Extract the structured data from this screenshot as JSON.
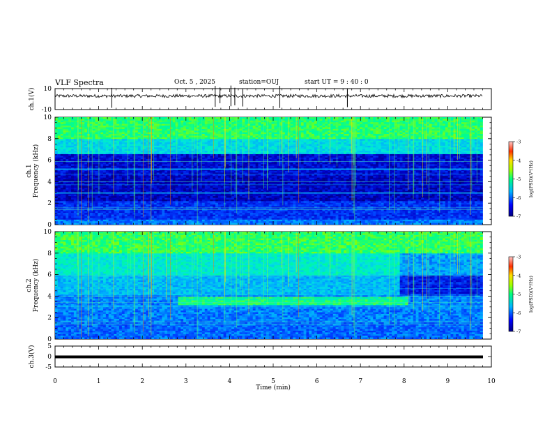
{
  "header": {
    "title": "VLF Spectra",
    "date": "Oct. 5 , 2025",
    "station": "station=OUJ",
    "start": "start  UT  =   9 : 40 : 0"
  },
  "chart_data": [
    {
      "type": "line",
      "panel": "ch1-waveform",
      "ylabel": "ch.1(V)",
      "ylim": [
        -10,
        10
      ],
      "yticks": [
        "10",
        "-10"
      ],
      "xlim": [
        0,
        10
      ],
      "baseline_level": 3,
      "spikes_min": [
        1.3,
        3.67,
        3.78,
        4.03,
        4.12,
        4.3,
        5.15,
        6.7
      ],
      "color": "#000000"
    },
    {
      "type": "heatmap",
      "panel": "ch1-spectrogram",
      "ylabel": "Frequency (kHz)",
      "channel_label": "ch.1",
      "ylim": [
        0,
        10
      ],
      "yticks": [
        "0",
        "2",
        "4",
        "6",
        "8",
        "10"
      ],
      "xlim": [
        0,
        10
      ],
      "colorbar": {
        "label": "log(PSD)(V²/Hz)",
        "range": [
          -7,
          -3
        ],
        "ticks": [
          "-3",
          "-4",
          "-5",
          "-6",
          "-7"
        ]
      }
    },
    {
      "type": "heatmap",
      "panel": "ch2-spectrogram",
      "ylabel": "Frequency (kHz)",
      "channel_label": "ch.2",
      "ylim": [
        0,
        10
      ],
      "yticks": [
        "0",
        "2",
        "4",
        "6",
        "8",
        "10"
      ],
      "xlim": [
        0,
        10
      ],
      "features": [
        {
          "type": "band",
          "x_start_min": 2.8,
          "x_end_min": 8.1,
          "freq_khz": [
            3.1,
            3.9
          ]
        }
      ],
      "colorbar": {
        "label": "log(PSD)(V²/Hz)",
        "range": [
          -7,
          -3
        ],
        "ticks": [
          "-3",
          "-4",
          "-5",
          "-6",
          "-7"
        ]
      }
    },
    {
      "type": "line",
      "panel": "ch3-waveform",
      "ylabel": "ch.3(V)",
      "ylim": [
        -5,
        5
      ],
      "yticks": [
        "5",
        "0",
        "-5"
      ],
      "xlim": [
        0,
        10
      ],
      "baseline_level": 0,
      "color": "#000000"
    }
  ],
  "xaxis": {
    "label": "Time  (min)",
    "ticks": [
      "0",
      "1",
      "2",
      "3",
      "4",
      "5",
      "6",
      "7",
      "8",
      "9",
      "10"
    ],
    "range": [
      0,
      10
    ]
  },
  "data_extent_min": 9.8
}
